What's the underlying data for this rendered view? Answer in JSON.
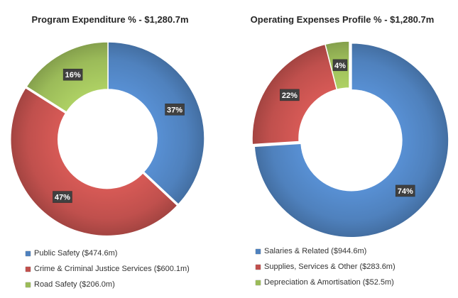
{
  "chart_data": [
    {
      "type": "pie",
      "variant": "donut",
      "title": "Program Expenditure % - $1,280.7m",
      "categories": [
        "Public Safety",
        "Crime & Criminal Justice Services",
        "Road Safety"
      ],
      "values": [
        37,
        47,
        16
      ],
      "amounts": [
        "$474.6m",
        "$600.1m",
        "$206.0m"
      ],
      "data_labels": [
        "37%",
        "47%",
        "16%"
      ],
      "legend": [
        "Public Safety ($474.6m)",
        "Crime & Criminal Justice Services ($600.1m)",
        "Road Safety ($206.0m)"
      ],
      "colors": [
        "#4F81BD",
        "#C0504D",
        "#9BBB59"
      ],
      "legend_position": "bottom"
    },
    {
      "type": "pie",
      "variant": "donut",
      "title": "Operating Expenses Profile % - $1,280.7m",
      "categories": [
        "Salaries & Related",
        "Supplies, Services & Other",
        "Depreciation & Amortisation"
      ],
      "values": [
        74,
        22,
        4
      ],
      "amounts": [
        "$944.6m",
        "$283.6m",
        "$52.5m"
      ],
      "data_labels": [
        "74%",
        "22%",
        "4%"
      ],
      "legend": [
        "Salaries & Related ($944.6m)",
        "Supplies, Services & Other ($283.6m)",
        "Depreciation & Amortisation ($52.5m)"
      ],
      "colors": [
        "#4F81BD",
        "#C0504D",
        "#9BBB59"
      ],
      "legend_position": "bottom"
    }
  ]
}
